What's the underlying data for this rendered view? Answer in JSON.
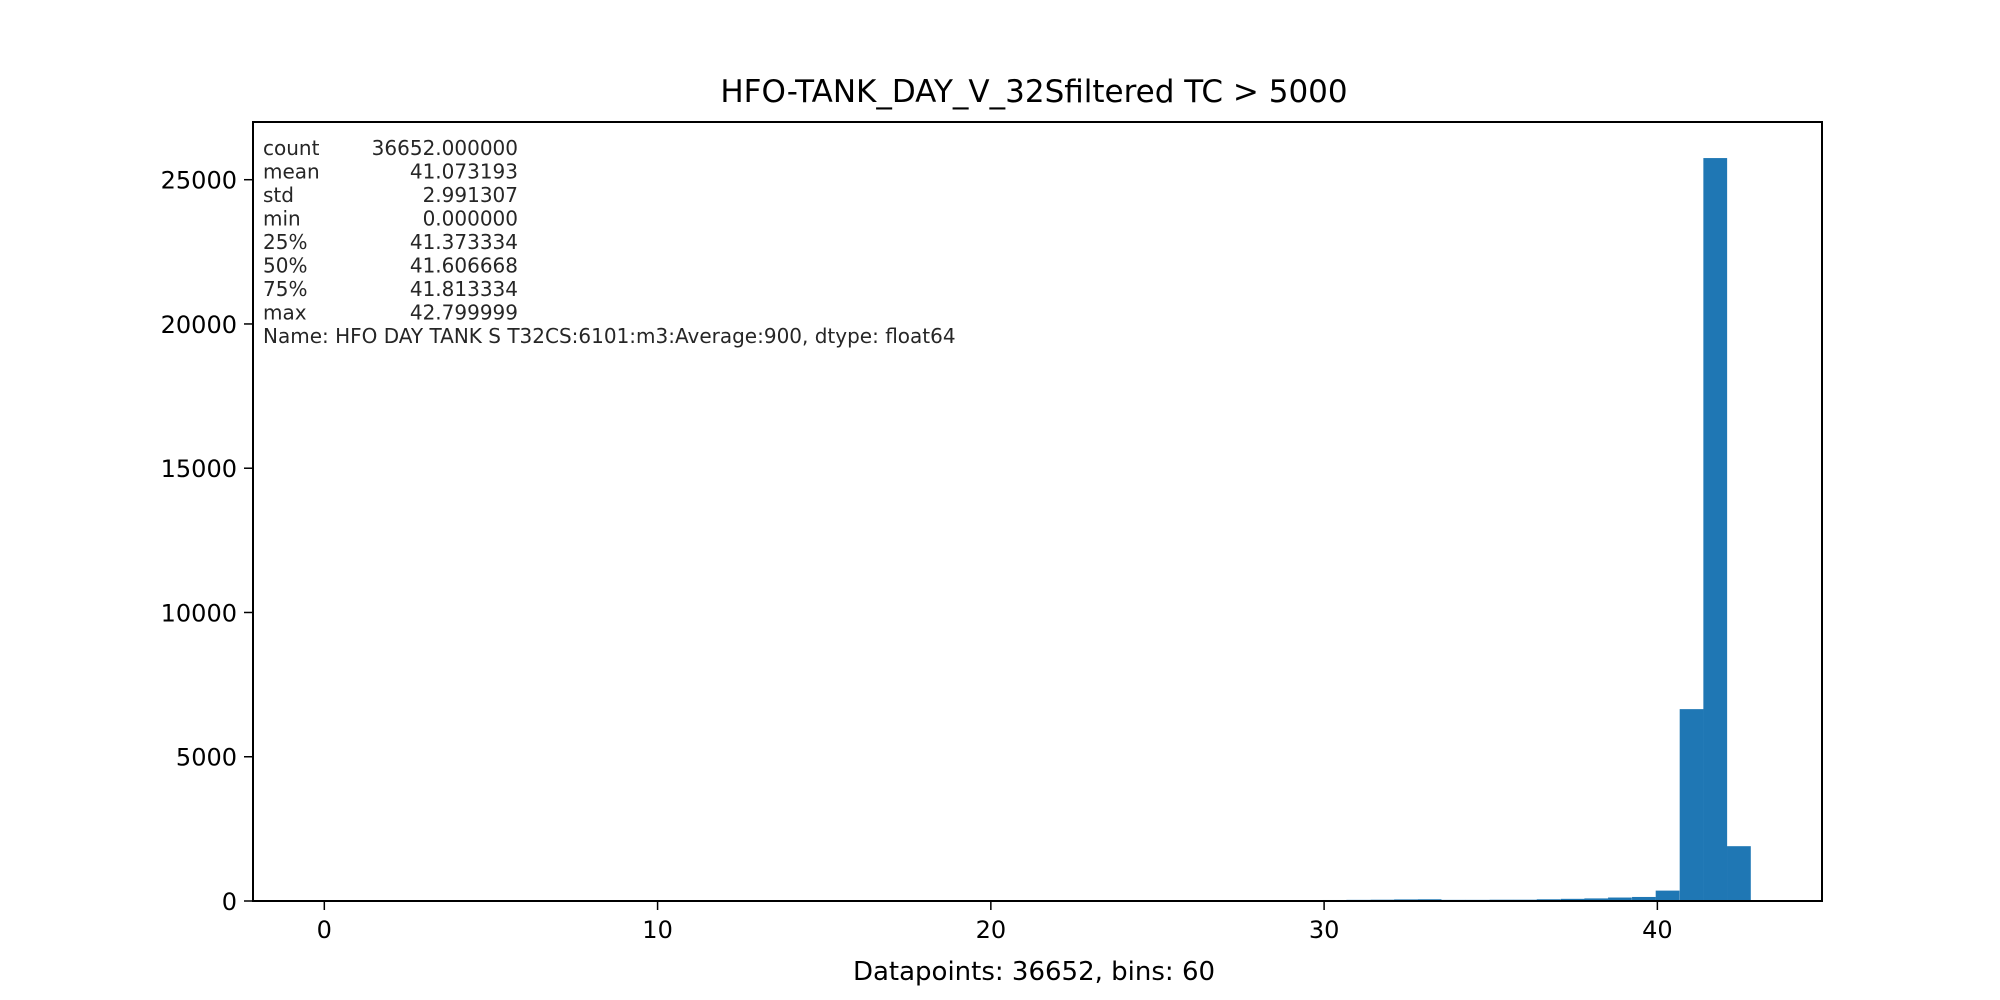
{
  "chart_data": {
    "type": "bar",
    "title": "HFO-TANK_DAY_V_32Sfiltered TC > 5000",
    "xlabel": "Datapoints: 36652, bins: 60",
    "ylabel": "",
    "xlim": [
      -2.14,
      44.94
    ],
    "ylim": [
      0,
      27000
    ],
    "x_ticks": [
      0,
      10,
      20,
      30,
      40
    ],
    "y_ticks": [
      0,
      5000,
      10000,
      15000,
      20000,
      25000
    ],
    "bin_width": 0.71333,
    "bars": [
      {
        "x": 27.11,
        "value": 25
      },
      {
        "x": 27.82,
        "value": 30
      },
      {
        "x": 29.96,
        "value": 35
      },
      {
        "x": 30.67,
        "value": 40
      },
      {
        "x": 31.39,
        "value": 45
      },
      {
        "x": 32.1,
        "value": 55
      },
      {
        "x": 32.81,
        "value": 60
      },
      {
        "x": 33.53,
        "value": 40
      },
      {
        "x": 34.24,
        "value": 40
      },
      {
        "x": 34.96,
        "value": 45
      },
      {
        "x": 35.67,
        "value": 45
      },
      {
        "x": 36.38,
        "value": 60
      },
      {
        "x": 37.1,
        "value": 75
      },
      {
        "x": 37.81,
        "value": 90
      },
      {
        "x": 38.52,
        "value": 120
      },
      {
        "x": 39.24,
        "value": 140
      },
      {
        "x": 39.95,
        "value": 360
      },
      {
        "x": 40.67,
        "value": 6650
      },
      {
        "x": 41.38,
        "value": 25750
      },
      {
        "x": 42.09,
        "value": 1900
      }
    ],
    "bar_color": "#1f77b4",
    "stats": [
      {
        "key": "count",
        "value": "36652.000000"
      },
      {
        "key": "mean",
        "value": "41.073193"
      },
      {
        "key": "std",
        "value": "2.991307"
      },
      {
        "key": "min",
        "value": "0.000000"
      },
      {
        "key": "25%",
        "value": "41.373334"
      },
      {
        "key": "50%",
        "value": "41.606668"
      },
      {
        "key": "75%",
        "value": "41.813334"
      },
      {
        "key": "max",
        "value": "42.799999"
      }
    ],
    "stats_name_line": "Name: HFO DAY TANK S T32CS:6101:m3:Average:900, dtype: float64"
  }
}
